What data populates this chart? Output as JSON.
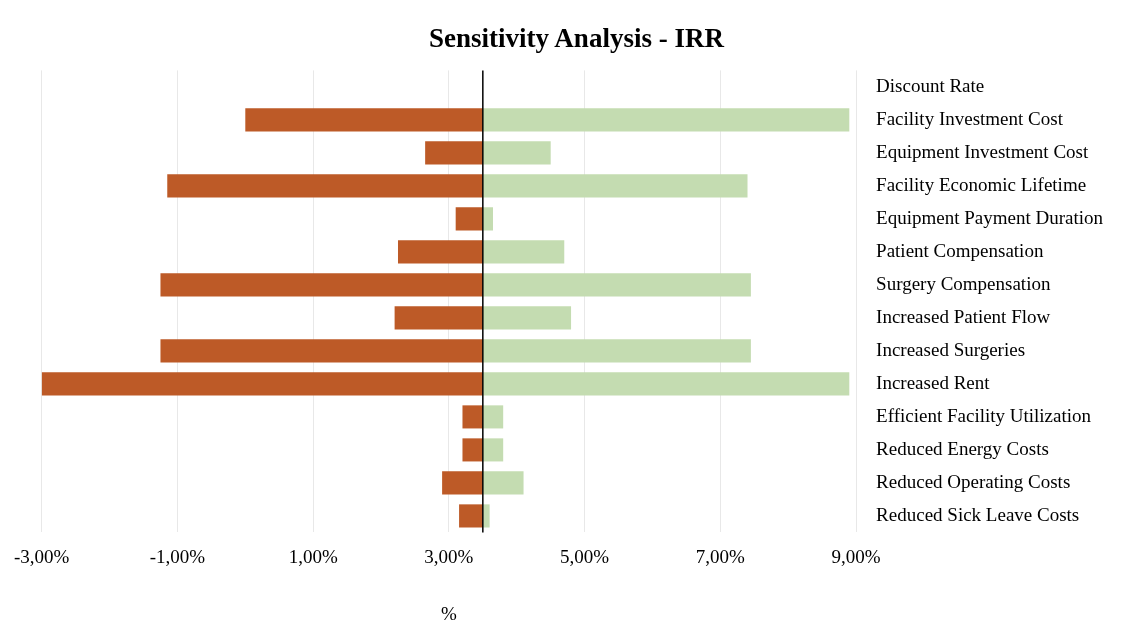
{
  "chart_data": {
    "type": "bar",
    "orientation": "horizontal",
    "title": "Sensitivity Analysis - IRR",
    "xlabel": "%",
    "categories": [
      "Discount Rate",
      "Facility Investment Cost",
      "Equipment Investment Cost",
      "Facility Economic Lifetime",
      "Equipment Payment Duration",
      "Patient Compensation",
      "Surgery Compensation",
      "Increased Patient Flow",
      "Increased Surgeries",
      "Increased Rent",
      "Efficient Facility Utilization",
      "Reduced Energy Costs",
      "Reduced Operating Costs",
      "Reduced Sick Leave Costs"
    ],
    "series": [
      {
        "color": "#bd5a27",
        "base": [
          null,
          3.5,
          3.5,
          3.5,
          3.5,
          3.5,
          3.5,
          3.5,
          3.5,
          3.5,
          3.5,
          3.5,
          3.5,
          3.5
        ],
        "values": [
          null,
          -3.5,
          -0.85,
          -4.65,
          -0.4,
          -1.25,
          -4.75,
          -1.3,
          -4.75,
          -6.5,
          -0.3,
          -0.3,
          -0.6,
          -0.35
        ]
      },
      {
        "color": "#c4dcb1",
        "base": [
          null,
          3.5,
          3.5,
          3.5,
          3.5,
          3.5,
          3.5,
          3.5,
          3.5,
          3.5,
          3.5,
          3.5,
          3.5,
          3.5
        ],
        "values": [
          null,
          5.4,
          1.0,
          3.9,
          0.15,
          1.2,
          3.95,
          1.3,
          3.95,
          5.4,
          0.3,
          0.3,
          0.6,
          0.1
        ]
      }
    ],
    "xlim": [
      -3,
      9
    ],
    "xticks": [
      {
        "value": -3,
        "label": "-3,00%"
      },
      {
        "value": -1,
        "label": "-1,00%"
      },
      {
        "value": 1,
        "label": "1,00%"
      },
      {
        "value": 3,
        "label": "3,00%"
      },
      {
        "value": 5,
        "label": "5,00%"
      },
      {
        "value": 7,
        "label": "7,00%"
      },
      {
        "value": 9,
        "label": "9,00%"
      }
    ],
    "ref_lines": [
      {
        "axis": "x",
        "value": 3.5,
        "color": "#000000"
      }
    ],
    "grid": "x",
    "legend": false
  }
}
